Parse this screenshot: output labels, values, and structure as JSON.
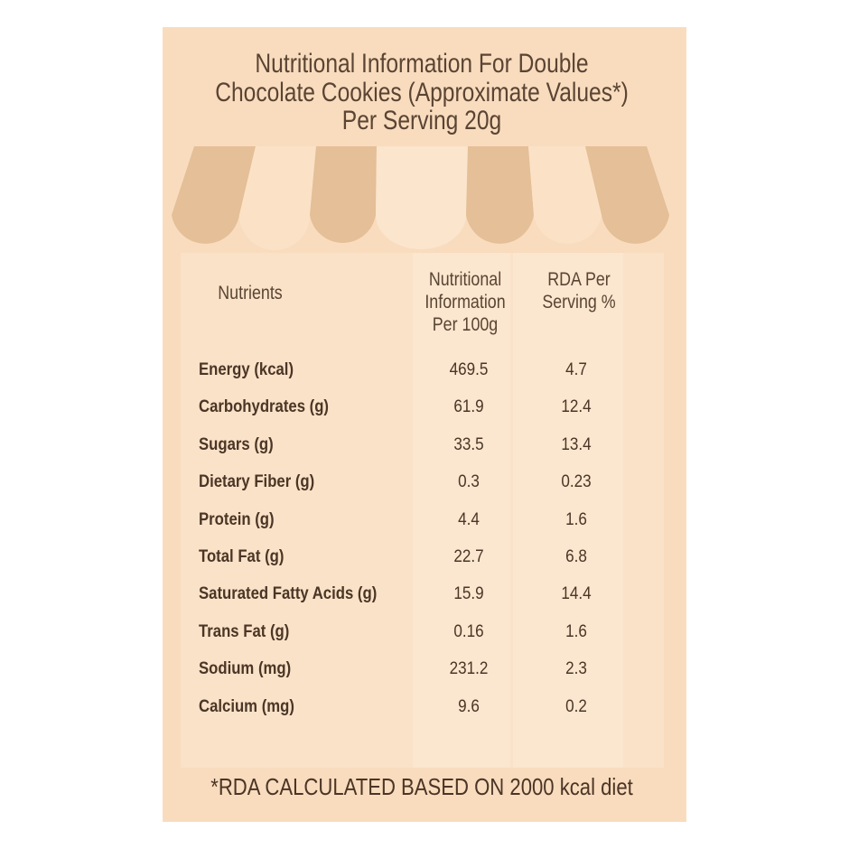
{
  "header": {
    "title_lines": [
      "Nutritional Information For Double",
      "Chocolate Cookies (Approximate Values*)",
      "Per Serving 20g"
    ]
  },
  "table": {
    "headers": [
      [
        "Nutrients"
      ],
      [
        "Nutritional",
        "Information",
        "Per 100g"
      ],
      [
        "RDA Per",
        "Serving %"
      ]
    ],
    "rows": [
      [
        "Energy (kcal)",
        "469.5",
        "4.7"
      ],
      [
        "Carbohydrates (g)",
        "61.9",
        "12.4"
      ],
      [
        "Sugars (g)",
        "33.5",
        "13.4"
      ],
      [
        "Dietary Fiber (g)",
        "0.3",
        "0.23"
      ],
      [
        "Protein (g)",
        "4.4",
        "1.6"
      ],
      [
        "Total Fat (g)",
        "22.7",
        "6.8"
      ],
      [
        "Saturated Fatty Acids (g)",
        "15.9",
        "14.4"
      ],
      [
        "Trans Fat (g)",
        "0.16",
        "1.6"
      ],
      [
        "Sodium (mg)",
        "231.2",
        "2.3"
      ],
      [
        "Calcium (mg)",
        "9.6",
        "0.2"
      ]
    ]
  },
  "footnote": "*RDA CALCULATED BASED ON 2000 kcal diet"
}
